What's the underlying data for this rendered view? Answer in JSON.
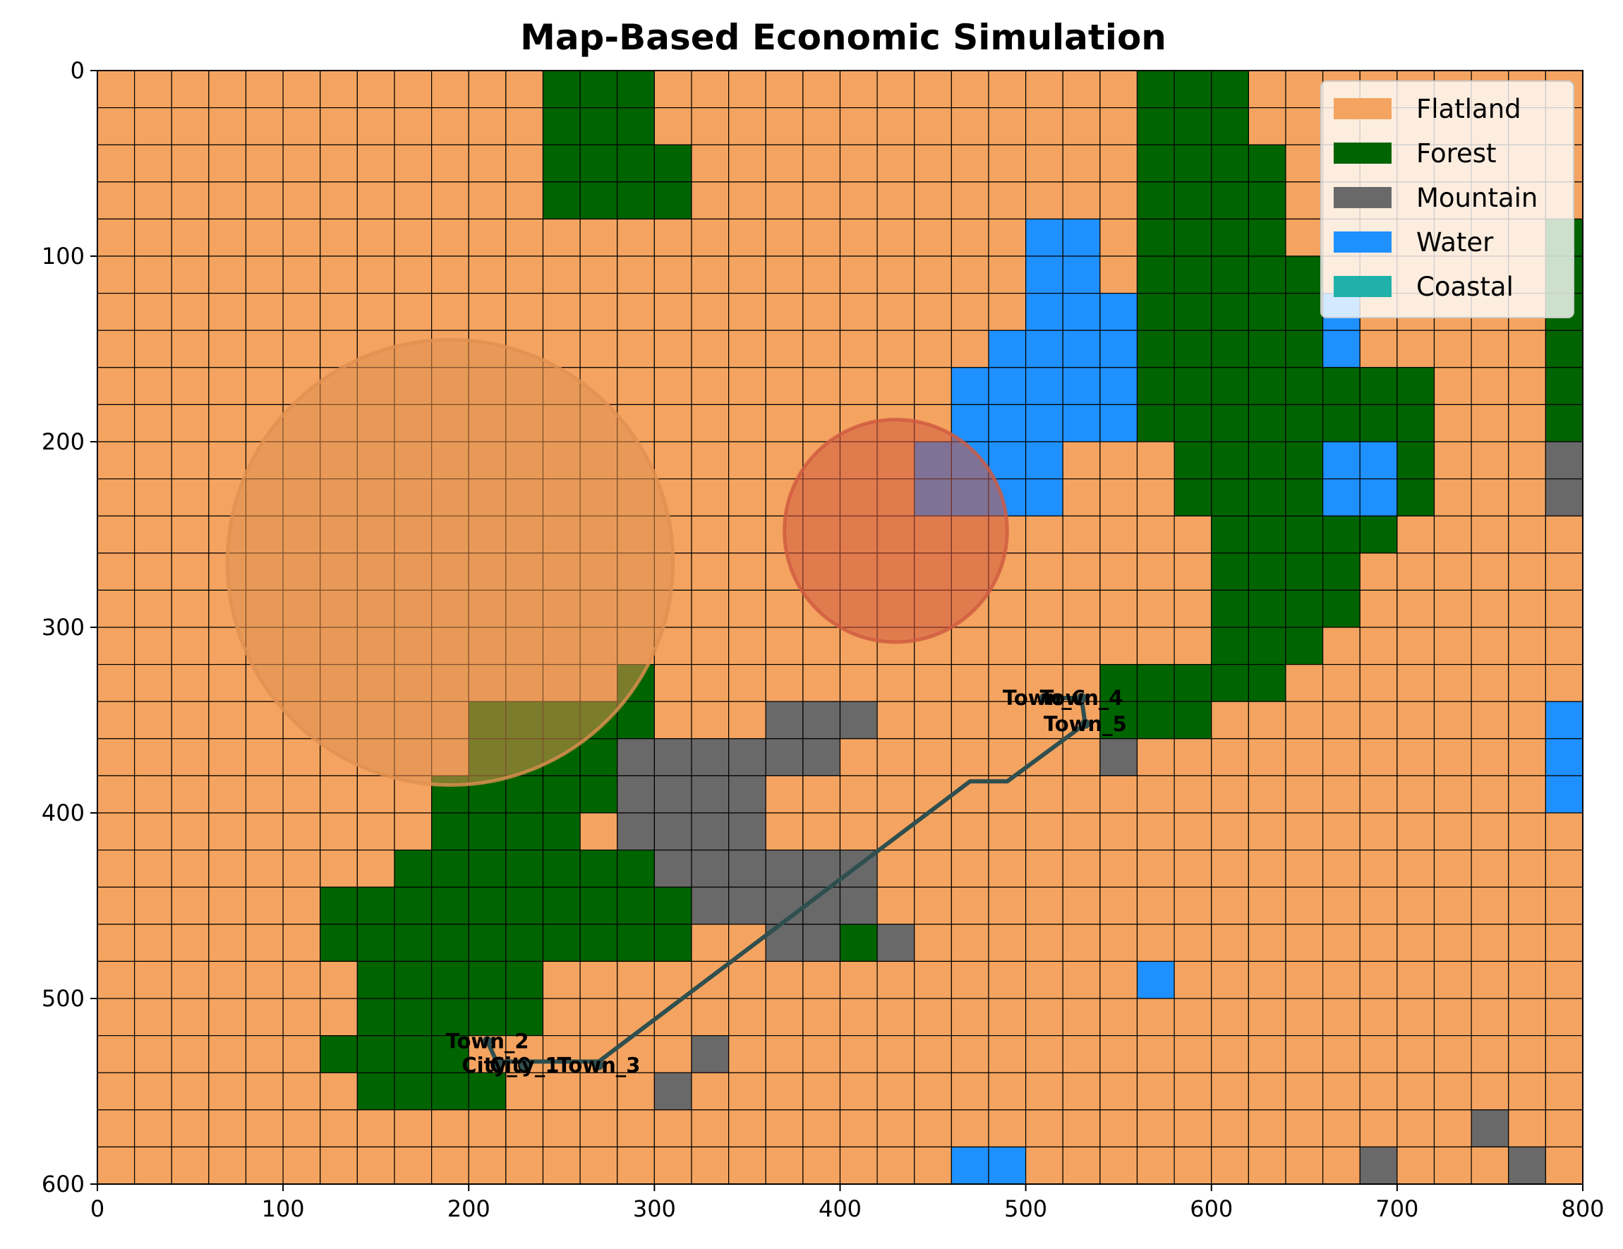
{
  "chart_data": {
    "type": "heatmap",
    "title": "Map-Based Economic Simulation",
    "xlim": [
      0,
      800
    ],
    "ylim": [
      600,
      0
    ],
    "y_inverted": true,
    "grid": true,
    "cell_size": 20,
    "cols": 40,
    "rows": 30,
    "x_ticks": [
      0,
      100,
      200,
      300,
      400,
      500,
      600,
      700,
      800
    ],
    "y_ticks": [
      0,
      100,
      200,
      300,
      400,
      500,
      600
    ],
    "terrain_types": [
      {
        "name": "Flatland",
        "color": "#F4A460"
      },
      {
        "name": "Forest",
        "color": "#006400"
      },
      {
        "name": "Mountain",
        "color": "#696969"
      },
      {
        "name": "Water",
        "color": "#1E90FF"
      },
      {
        "name": "Coastal",
        "color": "#20B2AA"
      }
    ],
    "legend": {
      "placement": "top-right",
      "entries": [
        "Flatland",
        "Forest",
        "Mountain",
        "Water",
        "Coastal"
      ]
    },
    "grid_rows": [
      "FFFFFFFFFFFFfffFFFFFFFFFFFFFfffFFFFFFFFF",
      "FFFFFFFFFFFFfffFFFFFFFFFFFFFfffFFFFFFFFF",
      "FFFFFFFFFFFFffffFFFFFFFFFFFFffffFFFFFFFF",
      "FFFFFFFFFFFFffffFFFFFFFFFFFFffffFFFFFFFF",
      "FFFFFFFFFFFFFFFFFFFFFFFFFWWFffffFFFFFFFf",
      "FFFFFFFFFFFFFFFFFFFFFFFFFWWFfffffFFFFFFf",
      "FFFFFFFFFFFFFFFFFFFFFFFFFWWWfffffWFFFFFf",
      "FFFFFFFFFFFFFFFFFFFFFFFFWWWWfffffWFFFFFf",
      "FFFFFFFFFFFFFFFFFFFFFFFWWWWWffffffffFFFf",
      "FFFFFFFFFFFFFFFFFFFFFFFWWWWWffffffffFFFf",
      "FFFFFFFFFFFFFFFFFFFFFFWWWWFFFffffWWfFFFM",
      "FFFFFFFFFFFFFFFFFFFFFFWWWWFFFffffWWfFFFM",
      "FFFFFFFFFFFFFFFFFFFFFFFFFFFFFFfffffFFFFF",
      "FFFFFFFFFFFFFFFFFFFFFFFFFFFFFFffffFFFFFF",
      "FFFFFFFFFFFFFFFFFFFFFFFFFFFFFFffffFFFFFF",
      "FFFFFFFFFFFFFFFFFFFFFFFFFFFFFFfffFFFFFFF",
      "FFFFFFFFFFFFFFfFFFFFFFFFFFFfffffFFFFFFFF",
      "FFFFFFFFFFfffffFFFMMMFFFFFFfffFFFFFFFFFW",
      "FFFFFFFFFFffffMMMMMMFFFFFFFMFFFFFFFFFFFW",
      "FFFFFFFFFfffffMMMMFFFFFFFFFFFFFFFFFFFFFW",
      "FFFFFFFFFffffFMMMMFFFFFFFFFFFFFFFFFFFFFF",
      "FFFFFFFFfffffffMMMMMMFFFFFFFFFFFFFFFFFFF",
      "FFFFFFffffffffffMMMMMFFFFFFFFFFFFFFFFFFF",
      "FFFFFFffffffffffFFMMfMFFFFFFFFFFFFFFFFFF",
      "FFFFFFFfffffFFFFFFFFFFFFFFFFWFFFFFFFFFFF",
      "FFFFFFFfffffFFFFFFFFFFFFFFFFFFFFFFFFFFFF",
      "FFFFFFffffFFFFFFMFFFFFFFFFFFFFFFFFFFFFFF",
      "FFFFFFFffffFFFFMFFFFFFFFFFFFFFFFFFFFFFFF",
      "FFFFFFFFFFFFFFFFFFFFFFFFFFFFFFFFFFFFFMFF",
      "FFFFFFFFFFFFFFFFFFFFFFFWWFFFFFFFFFMFFFMF"
    ],
    "overlay_patches": [
      {
        "x": 800,
        "y": 0,
        "cols": 0,
        "rows": 0,
        "type": "Coastal"
      }
    ],
    "zones": [
      {
        "cx": 190,
        "cy": 265,
        "r": 120,
        "color": "#E09050",
        "opacity": 0.55
      },
      {
        "cx": 430,
        "cy": 248,
        "r": 60,
        "color": "#D05A40",
        "opacity": 0.55
      }
    ],
    "settlements": [
      {
        "name": "Town_6",
        "x": 510,
        "y": 338
      },
      {
        "name": "Town_4",
        "x": 530,
        "y": 338
      },
      {
        "name": "Town_5",
        "x": 532,
        "y": 352
      },
      {
        "name": "Town_2",
        "x": 210,
        "y": 523
      },
      {
        "name": "City_0",
        "x": 215,
        "y": 536
      },
      {
        "name": "City_1",
        "x": 230,
        "y": 536
      },
      {
        "name": "Town_3",
        "x": 270,
        "y": 536
      }
    ],
    "route": [
      [
        210,
        523
      ],
      [
        215,
        534
      ],
      [
        255,
        534
      ],
      [
        270,
        534
      ],
      [
        470,
        383
      ],
      [
        490,
        383
      ],
      [
        532,
        352
      ],
      [
        530,
        338
      ],
      [
        510,
        338
      ]
    ]
  }
}
